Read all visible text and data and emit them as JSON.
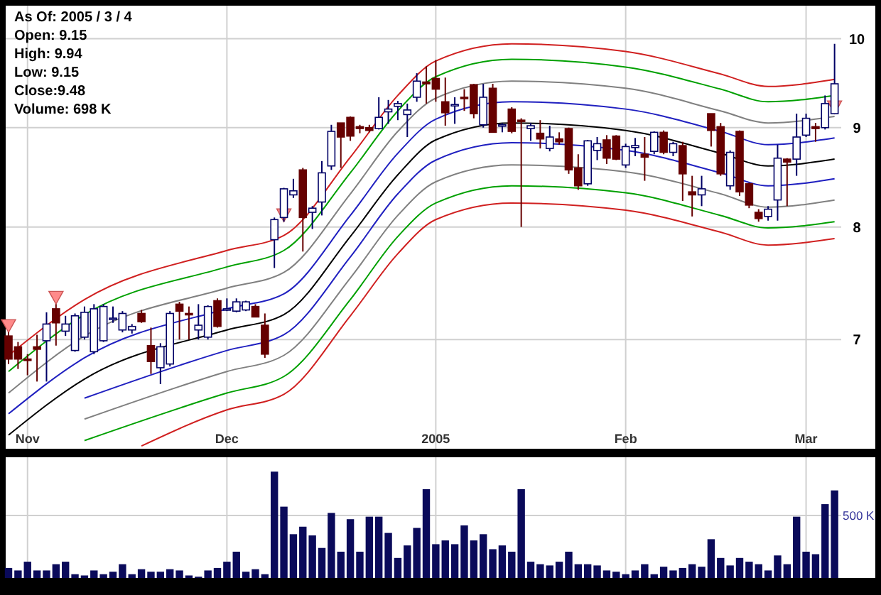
{
  "chart_data": [
    {
      "type": "candlestick",
      "categories": [
        null,
        null,
        "Nov",
        null,
        null,
        null,
        null,
        null,
        null,
        null,
        null,
        null,
        null,
        null,
        null,
        null,
        null,
        null,
        null,
        null,
        null,
        null,
        null,
        "Dec",
        null,
        null,
        null,
        null,
        null,
        null,
        null,
        null,
        null,
        null,
        null,
        null,
        null,
        null,
        null,
        null,
        null,
        null,
        null,
        null,
        null,
        "2005",
        null,
        null,
        null,
        null,
        null,
        null,
        null,
        null,
        null,
        null,
        null,
        null,
        null,
        null,
        null,
        null,
        null,
        null,
        null,
        "Feb",
        null,
        null,
        null,
        null,
        null,
        null,
        null,
        null,
        null,
        null,
        null,
        null,
        null,
        null,
        null,
        null,
        null,
        null,
        "Mar",
        null,
        null,
        null
      ],
      "ohlc": [
        [
          7.03,
          7.06,
          6.8,
          6.84
        ],
        [
          6.94,
          6.98,
          6.76,
          6.84
        ],
        [
          6.84,
          6.88,
          6.71,
          6.83
        ],
        [
          6.94,
          7.04,
          6.66,
          6.92
        ],
        [
          6.99,
          7.23,
          6.66,
          7.13
        ],
        [
          7.26,
          7.3,
          6.95,
          7.14
        ],
        [
          7.07,
          7.2,
          7.03,
          7.13
        ],
        [
          6.91,
          7.22,
          6.9,
          7.2
        ],
        [
          7.02,
          7.28,
          7.0,
          7.23
        ],
        [
          6.9,
          7.3,
          6.88,
          7.26
        ],
        [
          6.99,
          7.3,
          6.98,
          7.28
        ],
        [
          7.18,
          7.28,
          7.14,
          7.18
        ],
        [
          7.08,
          7.24,
          7.06,
          7.22
        ],
        [
          7.08,
          7.13,
          7.05,
          7.11
        ],
        [
          7.22,
          7.25,
          7.14,
          7.15
        ],
        [
          6.95,
          7.1,
          6.72,
          6.82
        ],
        [
          6.77,
          6.97,
          6.64,
          6.94
        ],
        [
          6.8,
          7.24,
          6.78,
          7.22
        ],
        [
          7.3,
          7.32,
          7.0,
          7.24
        ],
        [
          7.22,
          7.28,
          7.0,
          7.21
        ],
        [
          7.08,
          7.3,
          7.0,
          7.12
        ],
        [
          7.02,
          7.29,
          7.0,
          7.28
        ],
        [
          7.33,
          7.35,
          7.1,
          7.11
        ],
        [
          7.26,
          7.35,
          7.24,
          7.26
        ],
        [
          7.24,
          7.35,
          7.23,
          7.32
        ],
        [
          7.25,
          7.33,
          7.24,
          7.32
        ],
        [
          7.28,
          7.3,
          7.19,
          7.19
        ],
        [
          7.12,
          7.22,
          6.85,
          6.88
        ],
        [
          7.88,
          8.09,
          7.62,
          8.07
        ],
        [
          8.09,
          8.38,
          8.05,
          8.37
        ],
        [
          8.31,
          8.47,
          8.28,
          8.35
        ],
        [
          8.56,
          8.58,
          7.77,
          8.09
        ],
        [
          8.14,
          8.2,
          7.98,
          8.18
        ],
        [
          8.24,
          8.65,
          8.11,
          8.53
        ],
        [
          8.6,
          9.03,
          8.56,
          8.96
        ],
        [
          9.05,
          9.05,
          8.58,
          8.9
        ],
        [
          9.11,
          9.12,
          8.86,
          8.91
        ],
        [
          9.01,
          9.03,
          8.94,
          8.99
        ],
        [
          9.0,
          9.03,
          8.95,
          8.97
        ],
        [
          8.99,
          9.33,
          8.98,
          9.11
        ],
        [
          9.17,
          9.3,
          9.04,
          9.2
        ],
        [
          9.23,
          9.29,
          9.08,
          9.26
        ],
        [
          9.14,
          9.26,
          8.9,
          9.19
        ],
        [
          9.33,
          9.6,
          9.28,
          9.51
        ],
        [
          9.5,
          9.68,
          9.26,
          9.48
        ],
        [
          9.54,
          9.75,
          9.28,
          9.42
        ],
        [
          9.28,
          9.55,
          9.02,
          9.16
        ],
        [
          9.25,
          9.33,
          9.04,
          9.25
        ],
        [
          9.33,
          9.42,
          9.18,
          9.32
        ],
        [
          9.47,
          9.48,
          9.1,
          9.15
        ],
        [
          9.03,
          9.48,
          9.0,
          9.33
        ],
        [
          9.43,
          9.48,
          8.95,
          8.95
        ],
        [
          9.03,
          9.05,
          8.95,
          9.03
        ],
        [
          9.2,
          9.22,
          8.94,
          8.96
        ],
        [
          9.08,
          9.1,
          8.0,
          9.07
        ],
        [
          8.99,
          9.05,
          8.86,
          9.02
        ],
        [
          8.94,
          9.08,
          8.78,
          8.88
        ],
        [
          8.78,
          9.02,
          8.75,
          8.9
        ],
        [
          8.88,
          8.95,
          8.82,
          8.85
        ],
        [
          8.99,
          9.0,
          8.52,
          8.56
        ],
        [
          8.58,
          8.72,
          8.36,
          8.4
        ],
        [
          8.42,
          8.87,
          8.4,
          8.86
        ],
        [
          8.76,
          8.9,
          8.66,
          8.83
        ],
        [
          8.87,
          8.92,
          8.62,
          8.68
        ],
        [
          8.91,
          8.92,
          8.66,
          8.67
        ],
        [
          8.61,
          8.83,
          8.58,
          8.8
        ],
        [
          8.79,
          8.89,
          8.7,
          8.81
        ],
        [
          8.72,
          8.9,
          8.45,
          8.69
        ],
        [
          8.75,
          8.96,
          8.72,
          8.95
        ],
        [
          8.95,
          8.97,
          8.72,
          8.74
        ],
        [
          8.74,
          8.85,
          8.7,
          8.83
        ],
        [
          8.81,
          8.85,
          8.25,
          8.52
        ],
        [
          8.34,
          8.5,
          8.1,
          8.31
        ],
        [
          8.31,
          8.5,
          8.2,
          8.37
        ],
        [
          9.15,
          9.15,
          8.8,
          8.97
        ],
        [
          9.01,
          9.05,
          8.5,
          8.52
        ],
        [
          8.4,
          8.76,
          8.36,
          8.74
        ],
        [
          8.96,
          8.97,
          8.3,
          8.34
        ],
        [
          8.42,
          8.43,
          8.18,
          8.21
        ],
        [
          8.14,
          8.17,
          8.05,
          8.08
        ],
        [
          8.1,
          8.2,
          8.06,
          8.17
        ],
        [
          8.26,
          8.82,
          8.06,
          8.68
        ],
        [
          8.67,
          8.68,
          8.2,
          8.64
        ],
        [
          8.67,
          9.15,
          8.5,
          8.9
        ],
        [
          8.92,
          9.15,
          8.9,
          9.1
        ],
        [
          9.01,
          9.05,
          8.85,
          8.99
        ],
        [
          9.0,
          9.35,
          8.98,
          9.26
        ],
        [
          9.15,
          9.94,
          9.15,
          9.48
        ]
      ],
      "series": [
        {
          "type": "line",
          "color": "#d02020",
          "values": [
            6.87,
            null,
            null,
            null,
            null,
            null,
            null,
            null,
            7.34,
            null,
            null,
            null,
            null,
            null,
            null,
            null,
            null,
            null,
            null,
            null,
            null,
            null,
            null,
            7.78,
            null,
            null,
            null,
            null,
            null,
            7.92,
            null,
            null,
            null,
            null,
            null,
            null,
            8.69,
            null,
            null,
            null,
            null,
            9.35,
            null,
            null,
            null,
            9.74,
            null,
            null,
            null,
            null,
            null,
            null,
            null,
            9.94,
            null,
            null,
            null,
            null,
            null,
            null,
            null,
            null,
            null,
            null,
            null,
            9.85,
            null,
            null,
            null,
            null,
            null,
            null,
            null,
            null,
            null,
            9.59,
            null,
            null,
            null,
            null,
            9.45,
            null,
            null,
            null,
            null,
            null,
            null,
            9.53
          ]
        },
        {
          "type": "line",
          "color": "#00a000",
          "values": [
            6.74,
            null,
            null,
            null,
            null,
            null,
            null,
            null,
            7.21,
            null,
            null,
            null,
            null,
            null,
            null,
            null,
            null,
            null,
            null,
            null,
            null,
            null,
            null,
            7.63,
            null,
            null,
            null,
            null,
            null,
            7.78,
            null,
            null,
            null,
            null,
            null,
            null,
            8.53,
            null,
            null,
            null,
            null,
            9.18,
            null,
            null,
            null,
            9.56,
            null,
            null,
            null,
            null,
            null,
            null,
            null,
            9.76,
            null,
            null,
            null,
            null,
            null,
            null,
            null,
            null,
            null,
            null,
            null,
            9.67,
            null,
            null,
            null,
            null,
            null,
            null,
            null,
            null,
            null,
            9.42,
            null,
            null,
            null,
            null,
            9.28,
            null,
            null,
            null,
            null,
            null,
            null,
            9.35
          ]
        },
        {
          "type": "line",
          "color": "#808080",
          "values": [
            6.57,
            null,
            null,
            null,
            null,
            null,
            null,
            null,
            7.03,
            null,
            null,
            null,
            null,
            null,
            null,
            null,
            null,
            null,
            null,
            null,
            null,
            null,
            null,
            7.44,
            null,
            null,
            null,
            null,
            null,
            7.58,
            null,
            null,
            null,
            null,
            null,
            null,
            8.32,
            null,
            null,
            null,
            null,
            8.96,
            null,
            null,
            null,
            9.32,
            null,
            null,
            null,
            null,
            null,
            null,
            null,
            9.51,
            null,
            null,
            null,
            null,
            null,
            null,
            null,
            null,
            null,
            null,
            null,
            9.43,
            null,
            null,
            null,
            null,
            null,
            null,
            null,
            null,
            null,
            9.18,
            null,
            null,
            null,
            null,
            9.05,
            null,
            null,
            null,
            null,
            null,
            null,
            9.12
          ]
        },
        {
          "type": "line",
          "color": "#2020c0",
          "values": [
            6.41,
            null,
            null,
            null,
            null,
            null,
            null,
            null,
            6.85,
            null,
            null,
            null,
            null,
            null,
            null,
            null,
            null,
            null,
            null,
            null,
            null,
            null,
            null,
            7.26,
            null,
            null,
            null,
            null,
            null,
            7.39,
            null,
            null,
            null,
            null,
            null,
            null,
            8.11,
            null,
            null,
            null,
            null,
            8.73,
            null,
            null,
            null,
            9.09,
            null,
            null,
            null,
            null,
            null,
            null,
            null,
            9.28,
            null,
            null,
            null,
            null,
            null,
            null,
            null,
            null,
            null,
            null,
            null,
            9.2,
            null,
            null,
            null,
            null,
            null,
            null,
            null,
            null,
            null,
            8.96,
            null,
            null,
            null,
            null,
            8.82,
            null,
            null,
            null,
            null,
            null,
            null,
            8.89
          ]
        },
        {
          "type": "line",
          "color": "#000000",
          "values": [
            6.25,
            null,
            null,
            null,
            null,
            null,
            null,
            null,
            6.68,
            null,
            null,
            null,
            null,
            null,
            null,
            null,
            null,
            null,
            null,
            null,
            null,
            null,
            null,
            7.08,
            null,
            null,
            null,
            null,
            null,
            7.21,
            null,
            null,
            null,
            null,
            null,
            null,
            7.91,
            null,
            null,
            null,
            null,
            8.51,
            null,
            null,
            null,
            8.87,
            null,
            null,
            null,
            null,
            null,
            null,
            null,
            9.05,
            null,
            null,
            null,
            null,
            null,
            null,
            null,
            null,
            null,
            null,
            null,
            8.97,
            null,
            null,
            null,
            null,
            null,
            null,
            null,
            null,
            null,
            8.73,
            null,
            null,
            null,
            null,
            8.6,
            null,
            null,
            null,
            null,
            null,
            null,
            8.67
          ]
        },
        {
          "type": "line",
          "color": "#2020c0",
          "values": [
            null,
            null,
            null,
            null,
            null,
            null,
            null,
            null,
            6.53,
            null,
            null,
            null,
            null,
            null,
            null,
            null,
            null,
            null,
            null,
            null,
            null,
            null,
            null,
            6.91,
            null,
            null,
            null,
            null,
            null,
            7.04,
            null,
            null,
            null,
            null,
            null,
            null,
            7.72,
            null,
            null,
            null,
            null,
            8.32,
            null,
            null,
            null,
            8.66,
            null,
            null,
            null,
            null,
            null,
            null,
            null,
            8.84,
            null,
            null,
            null,
            null,
            null,
            null,
            null,
            null,
            null,
            null,
            null,
            8.76,
            null,
            null,
            null,
            null,
            null,
            null,
            null,
            null,
            null,
            8.53,
            null,
            null,
            null,
            null,
            8.4,
            null,
            null,
            null,
            null,
            null,
            null,
            8.47
          ]
        },
        {
          "type": "line",
          "color": "#808080",
          "values": [
            null,
            null,
            null,
            null,
            null,
            null,
            null,
            null,
            6.37,
            null,
            null,
            null,
            null,
            null,
            null,
            null,
            null,
            null,
            null,
            null,
            null,
            null,
            null,
            6.74,
            null,
            null,
            null,
            null,
            null,
            6.87,
            null,
            null,
            null,
            null,
            null,
            null,
            7.53,
            null,
            null,
            null,
            null,
            8.11,
            null,
            null,
            null,
            8.44,
            null,
            null,
            null,
            null,
            null,
            null,
            null,
            8.61,
            null,
            null,
            null,
            null,
            null,
            null,
            null,
            null,
            null,
            null,
            null,
            8.54,
            null,
            null,
            null,
            null,
            null,
            null,
            null,
            null,
            null,
            8.32,
            null,
            null,
            null,
            null,
            8.19,
            null,
            null,
            null,
            null,
            null,
            null,
            8.26
          ]
        },
        {
          "type": "line",
          "color": "#00a000",
          "values": [
            null,
            null,
            null,
            null,
            null,
            null,
            null,
            null,
            6.21,
            null,
            null,
            null,
            null,
            null,
            null,
            null,
            null,
            null,
            null,
            null,
            null,
            null,
            null,
            6.57,
            null,
            null,
            null,
            null,
            null,
            6.7,
            null,
            null,
            null,
            null,
            null,
            null,
            7.34,
            null,
            null,
            null,
            null,
            7.91,
            null,
            null,
            null,
            8.23,
            null,
            null,
            null,
            null,
            null,
            null,
            null,
            8.4,
            null,
            null,
            null,
            null,
            null,
            null,
            null,
            null,
            null,
            null,
            null,
            8.33,
            null,
            null,
            null,
            null,
            null,
            null,
            null,
            null,
            null,
            8.11,
            null,
            null,
            null,
            null,
            7.99,
            null,
            null,
            null,
            null,
            null,
            null,
            8.05
          ]
        },
        {
          "type": "line",
          "color": "#d02020",
          "values": [
            null,
            null,
            null,
            null,
            null,
            null,
            null,
            null,
            null,
            null,
            null,
            null,
            null,
            null,
            6.17,
            null,
            null,
            null,
            null,
            null,
            null,
            null,
            null,
            6.44,
            null,
            null,
            null,
            null,
            null,
            6.56,
            null,
            null,
            null,
            null,
            null,
            null,
            7.2,
            null,
            null,
            null,
            null,
            7.75,
            null,
            null,
            null,
            8.07,
            null,
            null,
            null,
            null,
            null,
            null,
            null,
            8.23,
            null,
            null,
            null,
            null,
            null,
            null,
            null,
            null,
            null,
            null,
            null,
            8.16,
            null,
            null,
            null,
            null,
            null,
            null,
            null,
            null,
            null,
            7.95,
            null,
            null,
            null,
            null,
            7.83,
            null,
            null,
            null,
            null,
            null,
            null,
            7.89
          ]
        }
      ],
      "ylim": [
        6.15,
        10.4
      ],
      "yticks": [
        7,
        8,
        9,
        10
      ],
      "log": true,
      "grid": true,
      "annotations": [
        "As Of: 2005 / 3 / 4",
        "Open: 9.15",
        "High: 9.94",
        "Low: 9.15",
        "Close:9.48",
        "Volume: 698 K"
      ]
    },
    {
      "type": "bar",
      "color": "#0a0a5a",
      "categories": [
        null,
        null,
        null,
        null,
        null,
        null,
        null,
        null,
        null,
        null,
        null,
        null,
        null,
        null,
        null,
        null,
        null,
        null,
        null,
        null,
        null,
        null,
        null,
        null,
        null,
        null,
        null,
        null,
        null,
        null,
        null,
        null,
        null,
        null,
        null,
        null,
        null,
        null,
        null,
        null,
        null,
        null,
        null,
        null,
        null,
        null,
        null,
        null,
        null,
        null,
        null,
        null,
        null,
        null,
        null,
        null,
        null,
        null,
        null,
        null,
        null,
        null,
        null,
        null,
        null,
        null,
        null,
        null,
        null,
        null,
        null,
        null,
        null,
        null,
        null,
        null,
        null,
        null,
        null,
        null,
        null,
        null,
        null,
        null,
        null,
        null,
        null,
        null
      ],
      "values": [
        80,
        60,
        130,
        60,
        60,
        110,
        130,
        30,
        20,
        60,
        30,
        50,
        110,
        30,
        70,
        50,
        50,
        70,
        60,
        20,
        10,
        60,
        80,
        130,
        210,
        50,
        70,
        30,
        850,
        570,
        350,
        410,
        340,
        240,
        520,
        210,
        470,
        210,
        490,
        490,
        360,
        160,
        260,
        400,
        710,
        270,
        300,
        270,
        420,
        300,
        350,
        230,
        260,
        210,
        710,
        130,
        110,
        100,
        130,
        210,
        110,
        110,
        100,
        60,
        50,
        30,
        60,
        110,
        30,
        90,
        60,
        80,
        110,
        90,
        310,
        160,
        100,
        160,
        130,
        110,
        60,
        180,
        110,
        490,
        210,
        190,
        590,
        700
      ],
      "ylim": [
        0,
        965
      ],
      "yticks": [
        {
          "value": 500,
          "label": "500 K"
        }
      ],
      "grid": true,
      "tick_labels": "y"
    }
  ]
}
